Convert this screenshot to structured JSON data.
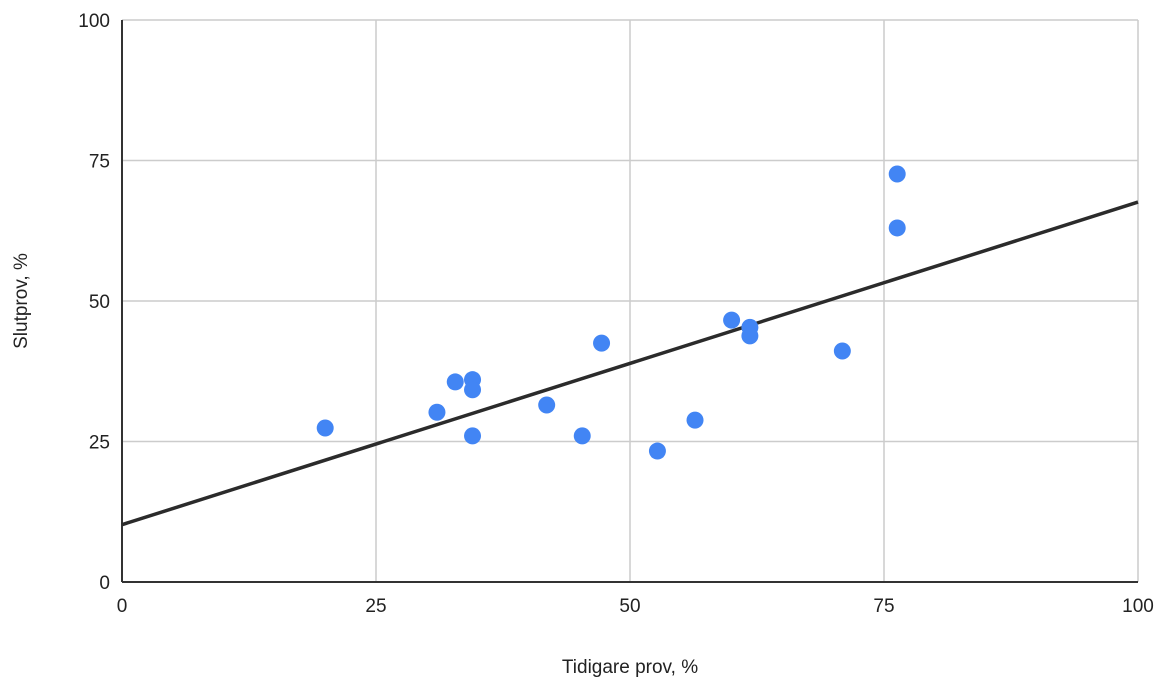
{
  "chart_data": {
    "type": "scatter",
    "title": "",
    "xlabel": "Tidigare prov, %",
    "ylabel": "Slutprov, %",
    "xlim": [
      0,
      100
    ],
    "ylim": [
      0,
      100
    ],
    "xticks": [
      "0",
      "25",
      "50",
      "75",
      "100"
    ],
    "yticks": [
      "0",
      "25",
      "50",
      "75",
      "100"
    ],
    "grid": true,
    "point_color": "#4285f4",
    "trendline_color": "#2b2b2b",
    "series": [
      {
        "points": [
          {
            "x": 20.0,
            "y": 27.4
          },
          {
            "x": 31.0,
            "y": 30.2
          },
          {
            "x": 32.8,
            "y": 35.6
          },
          {
            "x": 34.5,
            "y": 36.0
          },
          {
            "x": 34.5,
            "y": 34.2
          },
          {
            "x": 34.5,
            "y": 26.0
          },
          {
            "x": 41.8,
            "y": 31.5
          },
          {
            "x": 45.3,
            "y": 26.0
          },
          {
            "x": 47.2,
            "y": 42.5
          },
          {
            "x": 52.7,
            "y": 23.3
          },
          {
            "x": 56.4,
            "y": 28.8
          },
          {
            "x": 60.0,
            "y": 46.6
          },
          {
            "x": 61.8,
            "y": 45.3
          },
          {
            "x": 61.8,
            "y": 43.8
          },
          {
            "x": 70.9,
            "y": 41.1
          },
          {
            "x": 76.3,
            "y": 72.6
          },
          {
            "x": 76.3,
            "y": 63.0
          }
        ]
      }
    ],
    "trendline": {
      "type": "linear",
      "intercept": 10.2,
      "slope": 0.574
    }
  }
}
